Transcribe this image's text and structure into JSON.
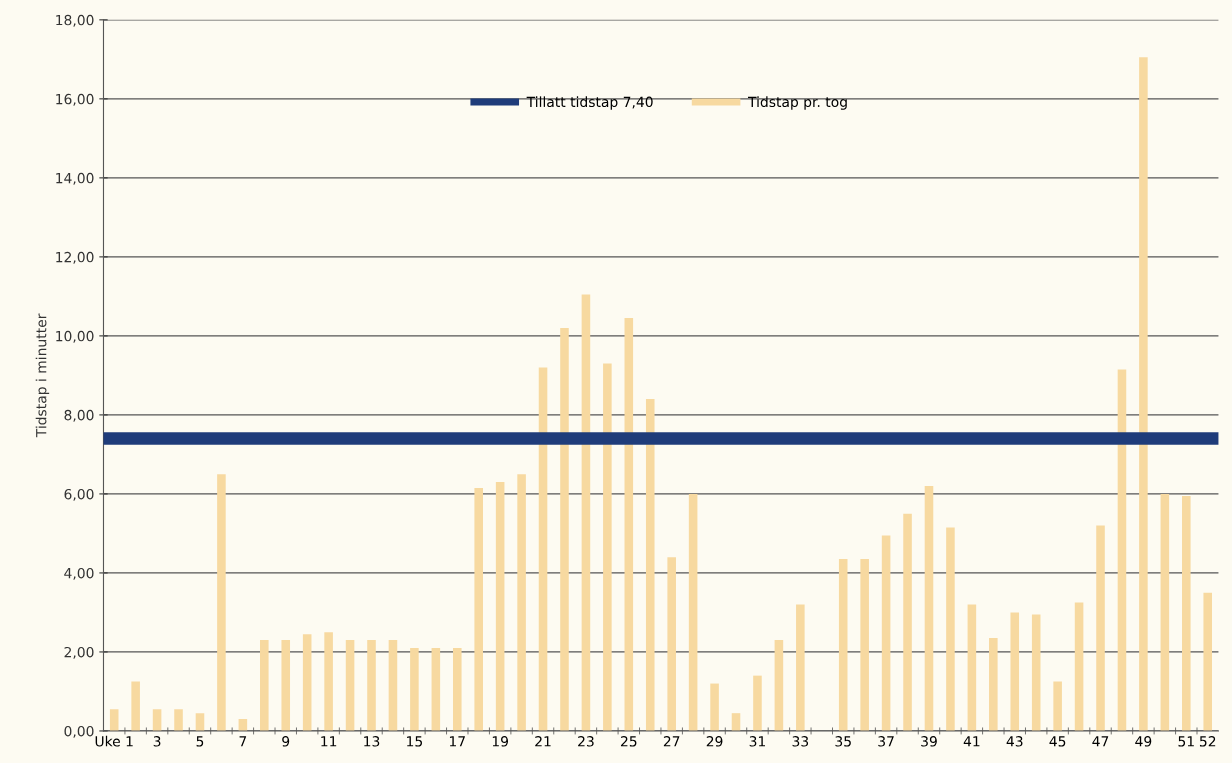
{
  "chart_data": {
    "type": "bar",
    "ylabel": "Tidstap i minutter",
    "categories": [
      "Uke 1",
      null,
      "3",
      null,
      "5",
      null,
      "7",
      null,
      "9",
      null,
      "11",
      null,
      "13",
      null,
      "15",
      null,
      "17",
      null,
      "19",
      null,
      "21",
      null,
      "23",
      null,
      "25",
      null,
      "27",
      null,
      "29",
      null,
      "31",
      null,
      "33",
      null,
      "35",
      null,
      "37",
      null,
      "39",
      null,
      "41",
      null,
      "43",
      null,
      "45",
      null,
      "47",
      null,
      "49",
      null,
      "51",
      "52"
    ],
    "series": [
      {
        "name": "Tidstap pr. tog",
        "color": "#f7d9a0",
        "values": [
          0.55,
          1.25,
          0.55,
          0.55,
          0.45,
          6.5,
          0.3,
          2.3,
          2.3,
          2.45,
          2.5,
          2.3,
          2.3,
          2.3,
          2.1,
          2.1,
          2.1,
          6.15,
          6.3,
          6.5,
          9.2,
          10.2,
          11.05,
          9.3,
          10.45,
          8.4,
          4.4,
          6.0,
          1.2,
          0.45,
          1.4,
          2.3,
          3.2,
          null,
          4.35,
          4.35,
          4.95,
          5.5,
          6.2,
          5.15,
          3.2,
          2.35,
          3.0,
          2.95,
          1.25,
          3.25,
          5.2,
          9.15,
          17.05,
          6.0,
          5.95,
          3.5
        ]
      }
    ],
    "ref_lines": [
      {
        "axis": "y",
        "value": 7.4,
        "label": "Tillatt tidstap 7,40",
        "color": "#1f3c7a"
      }
    ],
    "ylim": [
      0,
      18
    ],
    "yticks": [
      {
        "value": 0,
        "label": "0,00"
      },
      {
        "value": 2,
        "label": "2,00"
      },
      {
        "value": 4,
        "label": "4,00"
      },
      {
        "value": 6,
        "label": "6,00"
      },
      {
        "value": 8,
        "label": "8,00"
      },
      {
        "value": 10,
        "label": "10,00"
      },
      {
        "value": 12,
        "label": "12,00"
      },
      {
        "value": 14,
        "label": "14,00"
      },
      {
        "value": 16,
        "label": "16,00"
      },
      {
        "value": 18,
        "label": "18,00"
      }
    ],
    "grid": "y",
    "legend": "top"
  }
}
